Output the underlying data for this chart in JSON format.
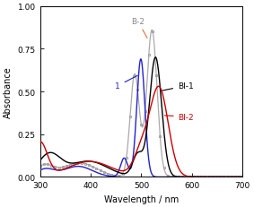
{
  "title": "",
  "xlabel": "Wavelength / nm",
  "ylabel": "Absorbance",
  "xlim": [
    300,
    700
  ],
  "ylim": [
    0,
    1.0
  ],
  "yticks": [
    0.0,
    0.25,
    0.5,
    0.75,
    1.0
  ],
  "xticks": [
    300,
    400,
    500,
    600,
    700
  ],
  "figsize": [
    2.83,
    2.32
  ],
  "dpi": 100,
  "colors": {
    "BI1": "#000000",
    "BI2": "#cc0000",
    "B2": "#aaaaaa",
    "1": "#2222cc"
  }
}
